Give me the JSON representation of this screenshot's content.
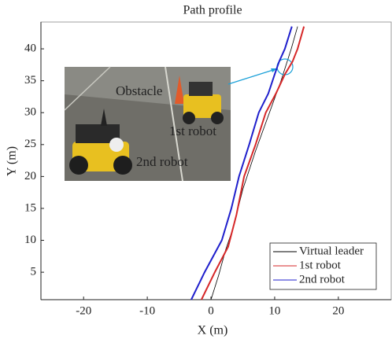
{
  "chart_data": {
    "type": "line",
    "title": "Path profile",
    "x_label": "X (m)",
    "y_label": "Y (m)",
    "xlim": [
      -26.7,
      28.3
    ],
    "ylim": [
      0.7,
      44.2
    ],
    "xticks": [
      -20,
      -10,
      0,
      10,
      20
    ],
    "yticks": [
      5,
      10,
      15,
      20,
      25,
      30,
      35,
      40
    ],
    "legend": "lower right",
    "series": [
      {
        "name": "Virtual leader",
        "color": "#000000",
        "x": [
          0,
          1.2,
          2.3,
          3.5,
          5,
          7,
          9,
          11,
          12.6,
          13.6
        ],
        "values": [
          0.7,
          4.5,
          8.5,
          12,
          18,
          24,
          29.5,
          35,
          40,
          43.5
        ]
      },
      {
        "name": "1st robot",
        "color": "#d62728",
        "x": [
          -1.5,
          0.6,
          2.7,
          4,
          5.2,
          7,
          8.6,
          10.2,
          11.6,
          12.8,
          13.6,
          14.6
        ],
        "values": [
          0.7,
          5,
          9,
          14,
          20,
          25,
          30,
          33,
          36,
          38,
          40,
          43.5
        ]
      },
      {
        "name": "2nd robot",
        "color": "#1f1fcc",
        "x": [
          -3.1,
          -1,
          1.7,
          3.2,
          4.4,
          6,
          7.5,
          9,
          10,
          10.7,
          11.6,
          12.7
        ],
        "values": [
          0.7,
          5,
          10,
          15,
          20,
          25,
          30,
          33,
          36,
          38,
          40,
          43.5
        ]
      }
    ],
    "photo_labels": [
      "Obstacle",
      "1st robot",
      "2nd robot"
    ]
  }
}
